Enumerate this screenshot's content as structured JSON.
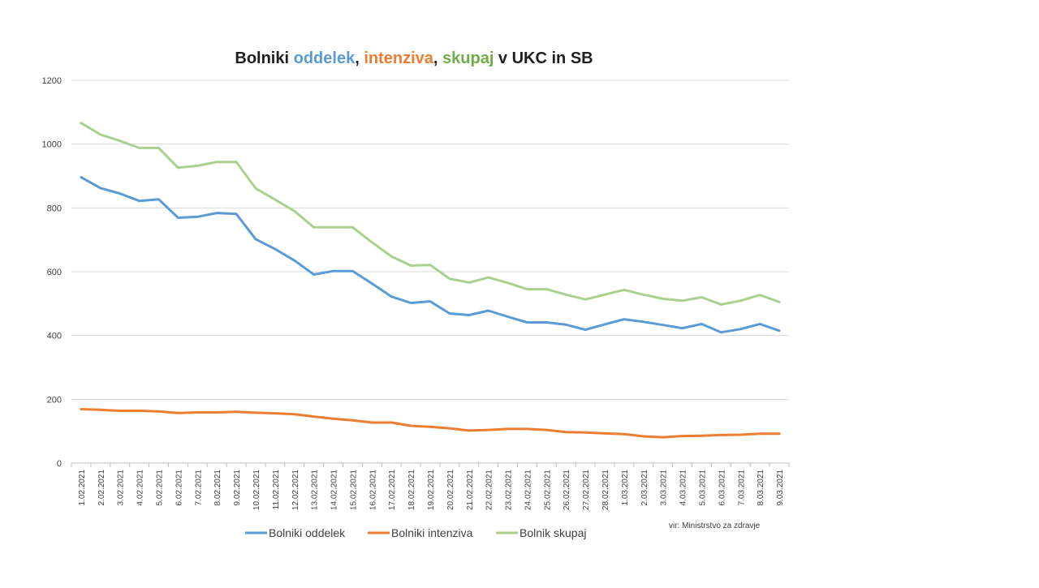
{
  "chart_data": {
    "type": "line",
    "title_parts": [
      {
        "text": "Bolniki ",
        "color": "#1f1f1f"
      },
      {
        "text": "oddelek",
        "color": "#5b9bd5"
      },
      {
        "text": ", ",
        "color": "#1f1f1f"
      },
      {
        "text": "intenziva",
        "color": "#ed7d31"
      },
      {
        "text": ", ",
        "color": "#1f1f1f"
      },
      {
        "text": "skupaj",
        "color": "#70ad47"
      },
      {
        "text": " v UKC in SB",
        "color": "#1f1f1f"
      }
    ],
    "xlabel": "",
    "ylabel": "",
    "ylim": [
      0,
      1200
    ],
    "yticks": [
      0,
      200,
      400,
      600,
      800,
      1000,
      1200
    ],
    "grid": true,
    "legend_position": "bottom",
    "categories": [
      "1.02.2021",
      "2.02.2021",
      "3.02.2021",
      "4.02.2021",
      "5.02.2021",
      "6.02.2021",
      "7.02.2021",
      "8.02.2021",
      "9.02.2021",
      "10.02.2021",
      "11.02.2021",
      "12.02.2021",
      "13.02.2021",
      "14.02.2021",
      "15.02.2021",
      "16.02.2021",
      "17.02.2021",
      "18.02.2021",
      "19.02.2021",
      "20.02.2021",
      "21.02.2021",
      "22.02.2021",
      "23.02.2021",
      "24.02.2021",
      "25.02.2021",
      "26.02.2021",
      "27.02.2021",
      "28.02.2021",
      "1.03.2021",
      "2.03.2021",
      "3.03.2021",
      "4.03.2021",
      "5.03.2021",
      "6.03.2021",
      "7.03.2021",
      "8.03.2021",
      "9.03.2021"
    ],
    "series": [
      {
        "name": "Bolniki oddelek",
        "color": "#5b9bd5",
        "values": [
          896,
          862,
          845,
          822,
          827,
          769,
          772,
          784,
          781,
          702,
          671,
          635,
          591,
          602,
          602,
          563,
          522,
          502,
          507,
          469,
          464,
          478,
          459,
          441,
          441,
          434,
          418,
          435,
          451,
          443,
          433,
          423,
          436,
          410,
          420,
          436,
          415
        ]
      },
      {
        "name": "Bolniki intenziva",
        "color": "#ed7d31",
        "values": [
          169,
          167,
          164,
          164,
          162,
          157,
          159,
          159,
          161,
          158,
          156,
          153,
          146,
          139,
          134,
          127,
          127,
          117,
          114,
          109,
          102,
          104,
          107,
          107,
          104,
          97,
          96,
          93,
          91,
          84,
          81,
          85,
          86,
          88,
          89,
          92,
          92
        ]
      },
      {
        "name": "Bolnik skupaj",
        "color": "#a9d18e",
        "values": [
          1066,
          1030,
          1010,
          988,
          988,
          926,
          932,
          944,
          944,
          861,
          826,
          790,
          739,
          739,
          739,
          692,
          648,
          619,
          621,
          578,
          566,
          582,
          565,
          545,
          545,
          528,
          513,
          528,
          543,
          528,
          515,
          509,
          520,
          497,
          509,
          527,
          505
        ]
      }
    ],
    "source_note": "vir: Ministrstvo za zdravje"
  }
}
